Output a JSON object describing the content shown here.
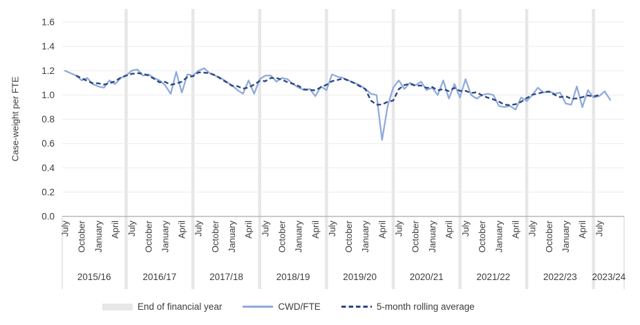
{
  "chart_data": {
    "type": "line",
    "title": "",
    "ylabel": "Case-weight per FTE",
    "ylim": [
      0.0,
      1.6
    ],
    "ytick_step": 0.2,
    "ytick_labels": [
      "0.0",
      "0.2",
      "0.4",
      "0.6",
      "0.8",
      "1.0",
      "1.2",
      "1.4",
      "1.6"
    ],
    "grid": true,
    "legend_position": "bottom",
    "x_axis": {
      "fiscal_year_labels": [
        "2015/16",
        "2016/17",
        "2017/18",
        "2018/19",
        "2019/20",
        "2020/21",
        "2021/22",
        "2022/23",
        "2023/24"
      ],
      "month_tick_labels_per_year": [
        "July",
        "October",
        "January",
        "April"
      ],
      "month_tick_offsets": [
        0,
        3,
        6,
        9
      ],
      "final_year_month_tick_labels": [
        "July"
      ],
      "months_per_year": 12,
      "start_month": "July 2015",
      "end_month": "September 2023"
    },
    "eofy_bands": {
      "label": "End of financial year",
      "color": "#E7E7E7",
      "at_month": "June"
    },
    "series": [
      {
        "name": "CWD/FTE",
        "style": "solid",
        "color": "#8FAADC",
        "values": [
          1.2,
          1.18,
          1.16,
          1.12,
          1.14,
          1.09,
          1.07,
          1.06,
          1.12,
          1.09,
          1.14,
          1.16,
          1.2,
          1.21,
          1.16,
          1.17,
          1.14,
          1.12,
          1.08,
          1.01,
          1.19,
          1.02,
          1.17,
          1.16,
          1.2,
          1.22,
          1.18,
          1.16,
          1.14,
          1.11,
          1.08,
          1.04,
          1.01,
          1.12,
          1.01,
          1.13,
          1.16,
          1.16,
          1.11,
          1.14,
          1.13,
          1.09,
          1.06,
          1.04,
          1.05,
          0.99,
          1.07,
          1.04,
          1.17,
          1.15,
          1.14,
          1.12,
          1.1,
          1.08,
          1.05,
          1.01,
          1.0,
          0.63,
          0.91,
          1.06,
          1.12,
          1.05,
          1.1,
          1.08,
          1.11,
          1.04,
          1.06,
          1.0,
          1.12,
          0.97,
          1.09,
          0.98,
          1.13,
          1.0,
          0.97,
          1.0,
          1.01,
          1.0,
          0.91,
          0.9,
          0.91,
          0.88,
          0.98,
          0.95,
          1.0,
          1.06,
          1.02,
          1.03,
          1.01,
          1.02,
          0.93,
          0.92,
          1.07,
          0.9,
          1.04,
          0.98,
          0.99,
          1.03,
          0.96
        ]
      },
      {
        "name": "5-month rolling average",
        "style": "dashed",
        "color": "#2B4680",
        "derived_from": "CWD/FTE",
        "window": 5
      }
    ],
    "colors": {
      "gridline": "#EBEBEB",
      "axis_line": "#ABABAB",
      "axis_boundary_line": "#D9D9D9",
      "text": "#3D3D3D"
    }
  }
}
